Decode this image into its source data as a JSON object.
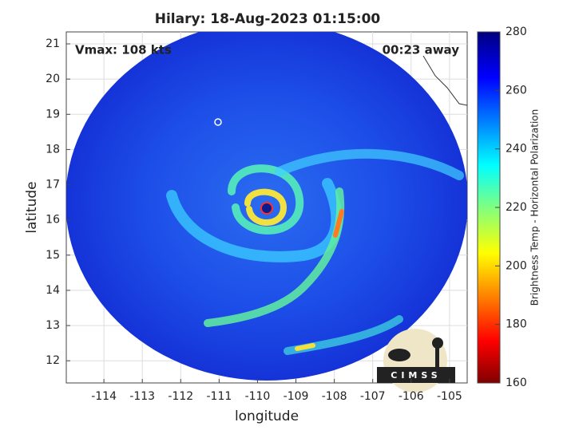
{
  "chart_data": {
    "type": "image",
    "title": "Hilary: 18-Aug-2023 01:15:00",
    "annotations": [
      "Vmax: 108 kts",
      "00:23 away"
    ],
    "x_label": "longitude",
    "y_label": "latitude",
    "xlim": [
      -114.98,
      -104.54
    ],
    "ylim": [
      11.37,
      21.34
    ],
    "xticks": [
      -114,
      -113,
      -112,
      -111,
      -110,
      -109,
      -108,
      -107,
      -106,
      -105
    ],
    "yticks": [
      12,
      13,
      14,
      15,
      16,
      17,
      18,
      19,
      20,
      21
    ],
    "grid": true,
    "colorbar": {
      "label": "Brightness Temp - Horizontal Polarization",
      "lim": [
        160,
        280
      ],
      "ticks": [
        160,
        180,
        200,
        220,
        240,
        260,
        280
      ]
    },
    "logo": "CIMSS"
  }
}
